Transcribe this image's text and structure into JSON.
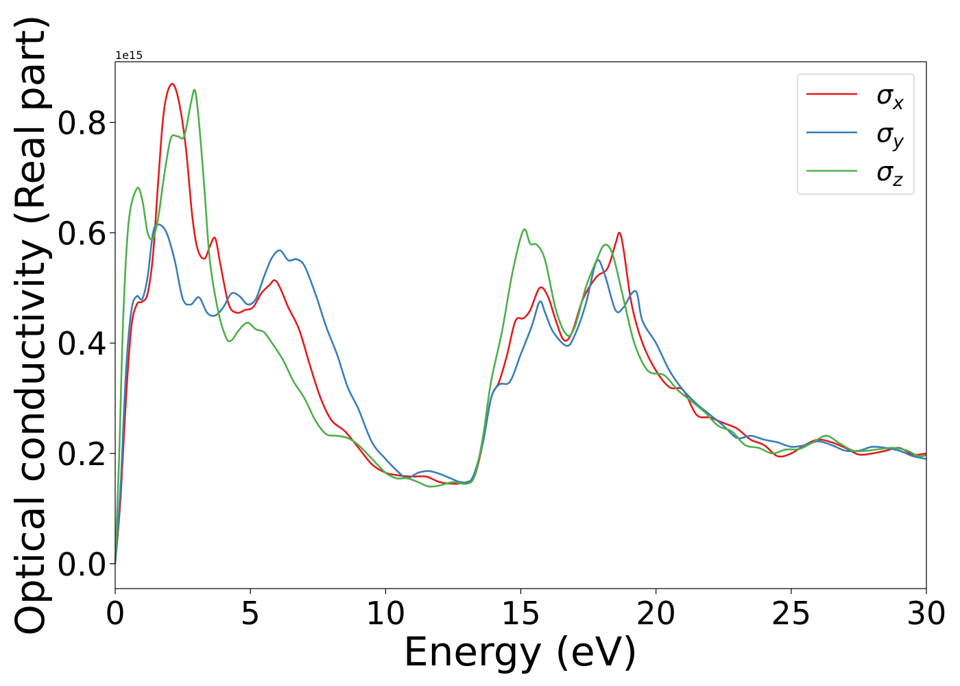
{
  "chart_data": {
    "type": "line",
    "xlabel": "Energy (eV)",
    "ylabel": "Optical conductivity (Real part)",
    "y_offset_label": "1e15",
    "xlim": [
      0,
      30
    ],
    "ylim": [
      -0.045,
      0.91
    ],
    "x_ticks": [
      0,
      5,
      10,
      15,
      20,
      25,
      30
    ],
    "x_tick_labels": [
      "0",
      "5",
      "10",
      "15",
      "20",
      "25",
      "30"
    ],
    "y_ticks": [
      0.0,
      0.2,
      0.4,
      0.6,
      0.8
    ],
    "y_tick_labels": [
      "0.0",
      "0.2",
      "0.4",
      "0.6",
      "0.8"
    ],
    "grid": false,
    "legend_position": "top-right",
    "series": [
      {
        "name": "σx",
        "legend_symbol": "σ",
        "legend_sub": "x",
        "color": "#e41a1c",
        "points": [
          [
            0,
            0
          ],
          [
            0.2,
            0.12
          ],
          [
            0.4,
            0.3
          ],
          [
            0.6,
            0.43
          ],
          [
            0.8,
            0.47
          ],
          [
            1.0,
            0.475
          ],
          [
            1.2,
            0.49
          ],
          [
            1.4,
            0.56
          ],
          [
            1.6,
            0.7
          ],
          [
            1.8,
            0.82
          ],
          [
            2.05,
            0.868
          ],
          [
            2.3,
            0.85
          ],
          [
            2.6,
            0.76
          ],
          [
            2.85,
            0.63
          ],
          [
            3.05,
            0.57
          ],
          [
            3.3,
            0.553
          ],
          [
            3.5,
            0.575
          ],
          [
            3.7,
            0.59
          ],
          [
            3.9,
            0.54
          ],
          [
            4.2,
            0.47
          ],
          [
            4.5,
            0.455
          ],
          [
            4.8,
            0.46
          ],
          [
            5.1,
            0.465
          ],
          [
            5.4,
            0.49
          ],
          [
            5.7,
            0.505
          ],
          [
            5.9,
            0.514
          ],
          [
            6.1,
            0.5
          ],
          [
            6.4,
            0.465
          ],
          [
            6.8,
            0.425
          ],
          [
            7.2,
            0.36
          ],
          [
            7.6,
            0.3
          ],
          [
            8.0,
            0.26
          ],
          [
            8.5,
            0.24
          ],
          [
            9.0,
            0.21
          ],
          [
            9.5,
            0.18
          ],
          [
            10.0,
            0.165
          ],
          [
            10.5,
            0.16
          ],
          [
            11.0,
            0.158
          ],
          [
            11.5,
            0.158
          ],
          [
            12.0,
            0.148
          ],
          [
            12.5,
            0.145
          ],
          [
            13.0,
            0.148
          ],
          [
            13.3,
            0.16
          ],
          [
            13.6,
            0.22
          ],
          [
            13.9,
            0.3
          ],
          [
            14.2,
            0.33
          ],
          [
            14.5,
            0.38
          ],
          [
            14.8,
            0.44
          ],
          [
            15.1,
            0.445
          ],
          [
            15.35,
            0.46
          ],
          [
            15.7,
            0.5
          ],
          [
            16.0,
            0.485
          ],
          [
            16.3,
            0.44
          ],
          [
            16.6,
            0.405
          ],
          [
            16.9,
            0.42
          ],
          [
            17.3,
            0.48
          ],
          [
            17.8,
            0.52
          ],
          [
            18.2,
            0.535
          ],
          [
            18.5,
            0.58
          ],
          [
            18.65,
            0.6
          ],
          [
            18.8,
            0.57
          ],
          [
            19.1,
            0.47
          ],
          [
            19.5,
            0.4
          ],
          [
            20.0,
            0.35
          ],
          [
            20.5,
            0.32
          ],
          [
            21.0,
            0.315
          ],
          [
            21.5,
            0.27
          ],
          [
            22.0,
            0.265
          ],
          [
            22.5,
            0.255
          ],
          [
            23.0,
            0.245
          ],
          [
            23.5,
            0.225
          ],
          [
            24.0,
            0.215
          ],
          [
            24.5,
            0.195
          ],
          [
            25.0,
            0.2
          ],
          [
            25.5,
            0.215
          ],
          [
            26.0,
            0.225
          ],
          [
            26.5,
            0.22
          ],
          [
            27.0,
            0.21
          ],
          [
            27.5,
            0.198
          ],
          [
            28.0,
            0.2
          ],
          [
            28.5,
            0.205
          ],
          [
            29.0,
            0.21
          ],
          [
            29.5,
            0.198
          ],
          [
            30.0,
            0.2
          ]
        ]
      },
      {
        "name": "σy",
        "legend_symbol": "σ",
        "legend_sub": "y",
        "color": "#377eb8",
        "points": [
          [
            0,
            0
          ],
          [
            0.2,
            0.14
          ],
          [
            0.4,
            0.35
          ],
          [
            0.6,
            0.46
          ],
          [
            0.8,
            0.485
          ],
          [
            1.0,
            0.48
          ],
          [
            1.2,
            0.52
          ],
          [
            1.4,
            0.6
          ],
          [
            1.6,
            0.615
          ],
          [
            1.9,
            0.6
          ],
          [
            2.2,
            0.55
          ],
          [
            2.5,
            0.48
          ],
          [
            2.8,
            0.47
          ],
          [
            3.1,
            0.483
          ],
          [
            3.4,
            0.455
          ],
          [
            3.7,
            0.45
          ],
          [
            4.0,
            0.465
          ],
          [
            4.3,
            0.49
          ],
          [
            4.6,
            0.485
          ],
          [
            4.9,
            0.47
          ],
          [
            5.2,
            0.48
          ],
          [
            5.5,
            0.52
          ],
          [
            5.8,
            0.555
          ],
          [
            6.1,
            0.568
          ],
          [
            6.4,
            0.55
          ],
          [
            6.7,
            0.552
          ],
          [
            7.0,
            0.54
          ],
          [
            7.4,
            0.49
          ],
          [
            7.8,
            0.43
          ],
          [
            8.2,
            0.38
          ],
          [
            8.6,
            0.32
          ],
          [
            9.0,
            0.28
          ],
          [
            9.5,
            0.22
          ],
          [
            10.0,
            0.19
          ],
          [
            10.5,
            0.165
          ],
          [
            10.8,
            0.155
          ],
          [
            11.2,
            0.165
          ],
          [
            11.6,
            0.168
          ],
          [
            12.0,
            0.163
          ],
          [
            12.4,
            0.155
          ],
          [
            12.8,
            0.148
          ],
          [
            13.2,
            0.155
          ],
          [
            13.6,
            0.22
          ],
          [
            13.9,
            0.3
          ],
          [
            14.2,
            0.325
          ],
          [
            14.6,
            0.33
          ],
          [
            15.0,
            0.38
          ],
          [
            15.4,
            0.43
          ],
          [
            15.7,
            0.475
          ],
          [
            15.9,
            0.455
          ],
          [
            16.2,
            0.42
          ],
          [
            16.7,
            0.395
          ],
          [
            17.0,
            0.415
          ],
          [
            17.4,
            0.47
          ],
          [
            17.8,
            0.548
          ],
          [
            18.1,
            0.525
          ],
          [
            18.5,
            0.46
          ],
          [
            18.8,
            0.465
          ],
          [
            19.1,
            0.49
          ],
          [
            19.3,
            0.49
          ],
          [
            19.5,
            0.44
          ],
          [
            20.0,
            0.4
          ],
          [
            20.5,
            0.35
          ],
          [
            21.0,
            0.315
          ],
          [
            21.5,
            0.29
          ],
          [
            22.0,
            0.27
          ],
          [
            22.5,
            0.25
          ],
          [
            23.0,
            0.228
          ],
          [
            23.5,
            0.232
          ],
          [
            24.0,
            0.225
          ],
          [
            24.5,
            0.22
          ],
          [
            25.0,
            0.212
          ],
          [
            25.5,
            0.215
          ],
          [
            26.0,
            0.222
          ],
          [
            26.5,
            0.215
          ],
          [
            27.0,
            0.205
          ],
          [
            27.5,
            0.205
          ],
          [
            28.0,
            0.212
          ],
          [
            28.5,
            0.21
          ],
          [
            29.0,
            0.205
          ],
          [
            29.5,
            0.195
          ],
          [
            30.0,
            0.19
          ]
        ]
      },
      {
        "name": "σz",
        "legend_symbol": "σ",
        "legend_sub": "z",
        "color": "#4daf4a",
        "points": [
          [
            0,
            0
          ],
          [
            0.15,
            0.2
          ],
          [
            0.3,
            0.45
          ],
          [
            0.5,
            0.62
          ],
          [
            0.8,
            0.68
          ],
          [
            1.0,
            0.66
          ],
          [
            1.2,
            0.6
          ],
          [
            1.4,
            0.59
          ],
          [
            1.6,
            0.63
          ],
          [
            1.8,
            0.7
          ],
          [
            2.05,
            0.77
          ],
          [
            2.3,
            0.775
          ],
          [
            2.55,
            0.775
          ],
          [
            2.8,
            0.835
          ],
          [
            2.95,
            0.858
          ],
          [
            3.1,
            0.8
          ],
          [
            3.3,
            0.68
          ],
          [
            3.5,
            0.55
          ],
          [
            3.8,
            0.46
          ],
          [
            4.1,
            0.41
          ],
          [
            4.3,
            0.405
          ],
          [
            4.6,
            0.425
          ],
          [
            4.9,
            0.437
          ],
          [
            5.2,
            0.425
          ],
          [
            5.5,
            0.42
          ],
          [
            5.8,
            0.4
          ],
          [
            6.2,
            0.37
          ],
          [
            6.6,
            0.33
          ],
          [
            7.0,
            0.3
          ],
          [
            7.4,
            0.26
          ],
          [
            7.8,
            0.235
          ],
          [
            8.2,
            0.232
          ],
          [
            8.6,
            0.228
          ],
          [
            9.0,
            0.215
          ],
          [
            9.5,
            0.19
          ],
          [
            10.0,
            0.165
          ],
          [
            10.4,
            0.155
          ],
          [
            10.8,
            0.155
          ],
          [
            11.2,
            0.148
          ],
          [
            11.6,
            0.14
          ],
          [
            12.0,
            0.142
          ],
          [
            12.5,
            0.148
          ],
          [
            13.0,
            0.145
          ],
          [
            13.3,
            0.16
          ],
          [
            13.6,
            0.23
          ],
          [
            13.9,
            0.33
          ],
          [
            14.3,
            0.42
          ],
          [
            14.7,
            0.53
          ],
          [
            15.1,
            0.605
          ],
          [
            15.35,
            0.58
          ],
          [
            15.6,
            0.578
          ],
          [
            15.9,
            0.55
          ],
          [
            16.3,
            0.46
          ],
          [
            16.7,
            0.415
          ],
          [
            17.0,
            0.43
          ],
          [
            17.4,
            0.5
          ],
          [
            17.8,
            0.55
          ],
          [
            18.1,
            0.578
          ],
          [
            18.4,
            0.56
          ],
          [
            18.8,
            0.48
          ],
          [
            19.2,
            0.4
          ],
          [
            19.7,
            0.35
          ],
          [
            20.3,
            0.342
          ],
          [
            20.8,
            0.315
          ],
          [
            21.3,
            0.295
          ],
          [
            21.8,
            0.275
          ],
          [
            22.3,
            0.25
          ],
          [
            22.8,
            0.24
          ],
          [
            23.3,
            0.215
          ],
          [
            23.8,
            0.21
          ],
          [
            24.3,
            0.2
          ],
          [
            24.8,
            0.207
          ],
          [
            25.3,
            0.208
          ],
          [
            25.8,
            0.22
          ],
          [
            26.3,
            0.232
          ],
          [
            26.8,
            0.218
          ],
          [
            27.3,
            0.205
          ],
          [
            27.8,
            0.205
          ],
          [
            28.3,
            0.208
          ],
          [
            28.8,
            0.21
          ],
          [
            29.3,
            0.205
          ],
          [
            29.7,
            0.195
          ],
          [
            30.0,
            0.197
          ]
        ]
      }
    ]
  }
}
